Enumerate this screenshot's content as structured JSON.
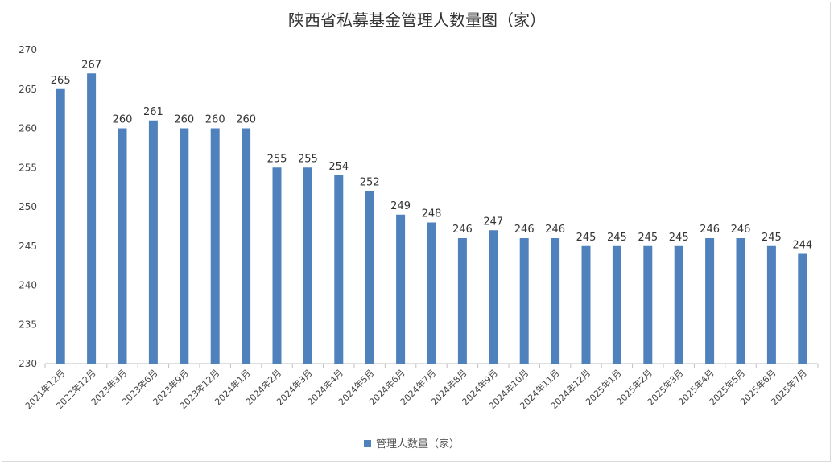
{
  "chart_data": {
    "type": "bar",
    "title": "陕西省私募基金管理人数量图（家）",
    "xlabel": "",
    "ylabel": "",
    "ylim": [
      230,
      270
    ],
    "yticks": [
      230,
      235,
      240,
      245,
      250,
      255,
      260,
      265,
      270
    ],
    "grid": false,
    "legend_position": "bottom",
    "bar_color": "#4f81bd",
    "categories": [
      "2021年12月",
      "2022年12月",
      "2023年3月",
      "2023年6月",
      "2023年9月",
      "2023年12月",
      "2024年1月",
      "2024年2月",
      "2024年3月",
      "2024年4月",
      "2024年5月",
      "2024年6月",
      "2024年7月",
      "2024年8月",
      "2024年9月",
      "2024年10月",
      "2024年11月",
      "2024年12月",
      "2025年1月",
      "2025年2月",
      "2025年3月",
      "2025年4月",
      "2025年5月",
      "2025年6月",
      "2025年7月"
    ],
    "series": [
      {
        "name": "管理人数量（家）",
        "values": [
          265,
          267,
          260,
          261,
          260,
          260,
          260,
          255,
          255,
          254,
          252,
          249,
          248,
          246,
          247,
          246,
          246,
          245,
          245,
          245,
          245,
          246,
          246,
          245,
          244
        ]
      }
    ]
  }
}
